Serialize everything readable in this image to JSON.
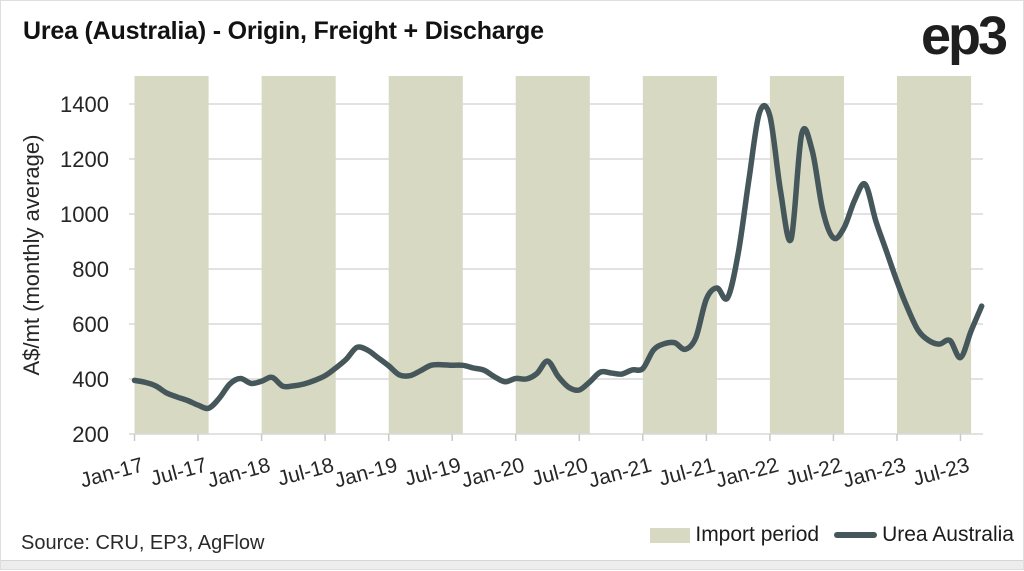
{
  "title": "Urea (Australia) - Origin, Freight + Discharge",
  "logo_text": "ep3",
  "source_note": "Source: CRU, EP3, AgFlow",
  "legend": {
    "import_label": "Import period",
    "series_label": "Urea Australia"
  },
  "colors": {
    "import_band": "#d7d9c3",
    "series_line": "#45575a",
    "gridline": "#d9d9d9",
    "tick": "#c9c9c9",
    "axis_text": "#262626"
  },
  "chart_data": {
    "type": "line",
    "title": "Urea (Australia) - Origin, Freight + Discharge",
    "ylabel": "A$/mt (monthly average)",
    "ylim": [
      200,
      1500
    ],
    "yticks": [
      200,
      400,
      600,
      800,
      1000,
      1200,
      1400
    ],
    "x_tick_labels": [
      "Jan-17",
      "Jul-17",
      "Jan-18",
      "Jul-18",
      "Jan-19",
      "Jul-19",
      "Jan-20",
      "Jul-20",
      "Jan-21",
      "Jul-21",
      "Jan-22",
      "Jul-22",
      "Jan-23",
      "Jul-23"
    ],
    "x_start": "Jan-17",
    "x_end": "Sep-23",
    "x_frequency": "monthly",
    "grid": "horizontal",
    "legend_position": "bottom-right",
    "import_period_month_spans": [
      [
        0,
        7
      ],
      [
        12,
        19
      ],
      [
        24,
        31
      ],
      [
        36,
        43
      ],
      [
        48,
        55
      ],
      [
        60,
        67
      ],
      [
        72,
        79
      ]
    ],
    "series": [
      {
        "name": "Urea Australia",
        "values": [
          395,
          388,
          375,
          350,
          335,
          322,
          305,
          294,
          330,
          382,
          402,
          384,
          392,
          406,
          374,
          375,
          382,
          395,
          412,
          440,
          472,
          515,
          505,
          477,
          448,
          415,
          412,
          430,
          450,
          452,
          450,
          450,
          440,
          432,
          408,
          390,
          402,
          400,
          420,
          465,
          410,
          370,
          360,
          390,
          425,
          422,
          418,
          433,
          438,
          505,
          528,
          532,
          508,
          550,
          691,
          731,
          695,
          855,
          1120,
          1367,
          1356,
          1084,
          909,
          1291,
          1229,
          1011,
          913,
          950,
          1050,
          1108,
          975,
          865,
          755,
          658,
          577,
          540,
          527,
          540,
          478,
          575,
          665
        ]
      }
    ]
  }
}
